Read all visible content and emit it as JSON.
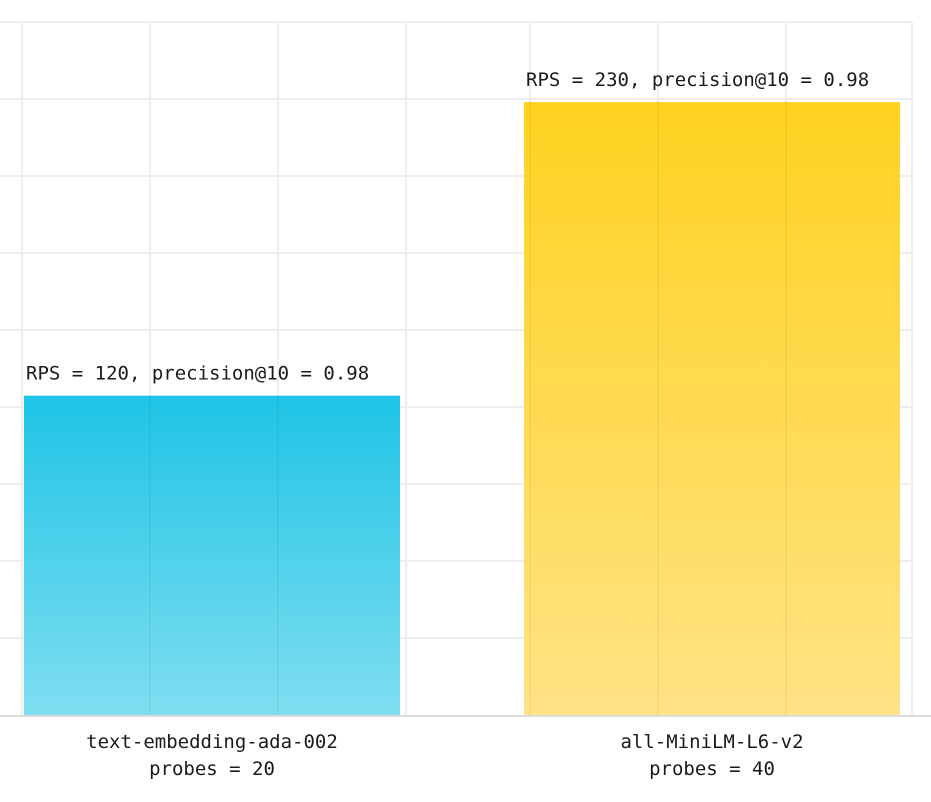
{
  "chart_data": {
    "type": "bar",
    "title": "",
    "xlabel": "",
    "ylabel": "",
    "grid": true,
    "legend": "none",
    "categories": [
      [
        "text-embedding-ada-002",
        "probes = 20"
      ],
      [
        "all-MiniLM-L6-v2",
        "probes = 40"
      ]
    ],
    "values": [
      120,
      230
    ],
    "data_labels": [
      "RPS = 120, precision@10 = 0.98",
      "RPS = 230, precision@10 = 0.98"
    ],
    "ylim": [
      0,
      260
    ],
    "colors": [
      {
        "top": "#1ec4e6",
        "bottom": "#7fdef0"
      },
      {
        "top": "#ffd21f",
        "bottom": "#ffe385"
      }
    ],
    "grid_color": "#eeeeee",
    "baseline_color": "#dcdcdc"
  }
}
